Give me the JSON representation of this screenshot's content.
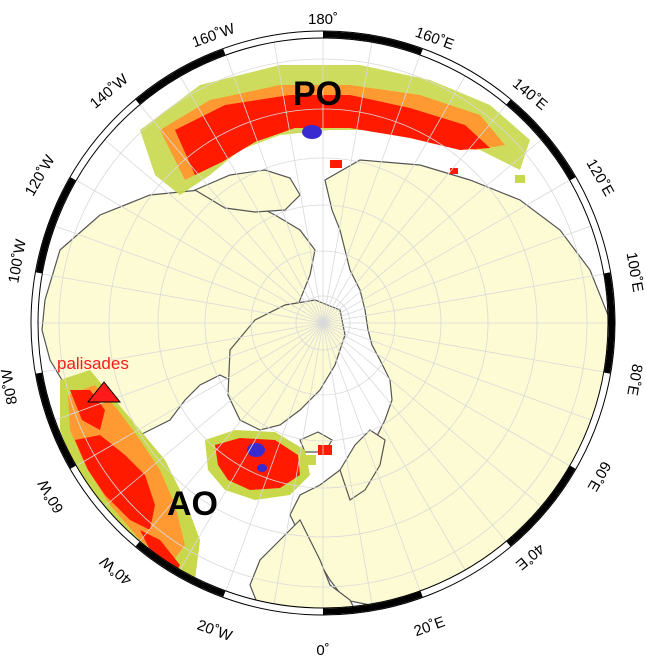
{
  "map": {
    "projection": "polar-stereographic-north",
    "colors": {
      "land": "#fdfbd3",
      "coast": "#555555",
      "grid": "#dddddd",
      "frame": "#000000",
      "density_low": "#c8d84a",
      "density_mid": "#ff9a33",
      "density_high": "#ff1a00",
      "density_peak": "#3a2bd1",
      "station": "#ff1a1a"
    },
    "lon_labels": [
      {
        "text": "180˚"
      },
      {
        "text": "160˚E"
      },
      {
        "text": "140˚E"
      },
      {
        "text": "120˚E"
      },
      {
        "text": "100˚E"
      },
      {
        "text": "80˚E"
      },
      {
        "text": "60˚E"
      },
      {
        "text": "40˚E"
      },
      {
        "text": "20˚E"
      },
      {
        "text": "0˚"
      },
      {
        "text": "20˚W"
      },
      {
        "text": "40˚W"
      },
      {
        "text": "60˚W"
      },
      {
        "text": "80˚W"
      },
      {
        "text": "100˚W"
      },
      {
        "text": "120˚W"
      },
      {
        "text": "140˚W"
      },
      {
        "text": "160˚W"
      }
    ],
    "regions": [
      {
        "text": "PO"
      },
      {
        "text": "AO"
      }
    ],
    "station": {
      "name": "palisades"
    }
  }
}
